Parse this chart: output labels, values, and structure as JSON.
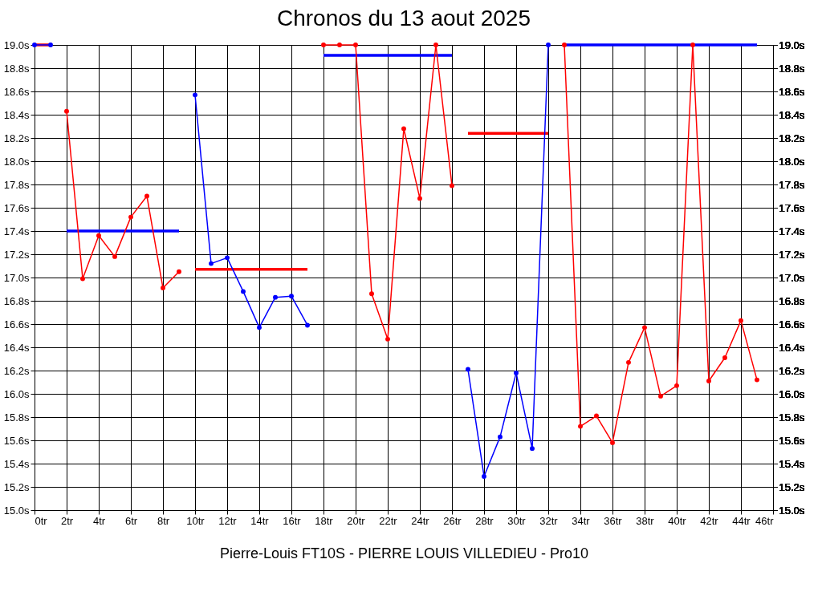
{
  "chart_data": {
    "type": "line",
    "title": "Chronos du 13 aout 2025",
    "xlabel": "Pierre-Louis FT10S - PIERRE LOUIS VILLEDIEU - Pro10",
    "xlim": [
      0,
      46
    ],
    "xticks": [
      {
        "value": 0,
        "label": "0tr"
      },
      {
        "value": 2,
        "label": "2tr"
      },
      {
        "value": 4,
        "label": "4tr"
      },
      {
        "value": 6,
        "label": "6tr"
      },
      {
        "value": 8,
        "label": "8tr"
      },
      {
        "value": 10,
        "label": "10tr"
      },
      {
        "value": 12,
        "label": "12tr"
      },
      {
        "value": 14,
        "label": "14tr"
      },
      {
        "value": 16,
        "label": "16tr"
      },
      {
        "value": 18,
        "label": "18tr"
      },
      {
        "value": 20,
        "label": "20tr"
      },
      {
        "value": 22,
        "label": "22tr"
      },
      {
        "value": 24,
        "label": "24tr"
      },
      {
        "value": 26,
        "label": "26tr"
      },
      {
        "value": 28,
        "label": "28tr"
      },
      {
        "value": 30,
        "label": "30tr"
      },
      {
        "value": 32,
        "label": "32tr"
      },
      {
        "value": 34,
        "label": "34tr"
      },
      {
        "value": 36,
        "label": "36tr"
      },
      {
        "value": 38,
        "label": "38tr"
      },
      {
        "value": 40,
        "label": "40tr"
      },
      {
        "value": 42,
        "label": "42tr"
      },
      {
        "value": 44,
        "label": "44tr"
      },
      {
        "value": 46,
        "label": "46tr"
      }
    ],
    "ylim": [
      15.0,
      19.0
    ],
    "yticks": [
      {
        "value": 15.0,
        "label": "15.0s"
      },
      {
        "value": 15.2,
        "label": "15.2s"
      },
      {
        "value": 15.4,
        "label": "15.4s"
      },
      {
        "value": 15.6,
        "label": "15.6s"
      },
      {
        "value": 15.8,
        "label": "15.8s"
      },
      {
        "value": 16.0,
        "label": "16.0s"
      },
      {
        "value": 16.2,
        "label": "16.2s"
      },
      {
        "value": 16.4,
        "label": "16.4s"
      },
      {
        "value": 16.6,
        "label": "16.6s"
      },
      {
        "value": 16.8,
        "label": "16.8s"
      },
      {
        "value": 17.0,
        "label": "17.0s"
      },
      {
        "value": 17.2,
        "label": "17.2s"
      },
      {
        "value": 17.4,
        "label": "17.4s"
      },
      {
        "value": 17.6,
        "label": "17.6s"
      },
      {
        "value": 17.8,
        "label": "17.8s"
      },
      {
        "value": 18.0,
        "label": "18.0s"
      },
      {
        "value": 18.2,
        "label": "18.2s"
      },
      {
        "value": 18.4,
        "label": "18.4s"
      },
      {
        "value": 18.6,
        "label": "18.6s"
      },
      {
        "value": 18.8,
        "label": "18.8s"
      },
      {
        "value": 19.0,
        "label": "19.0s"
      }
    ],
    "y2lim": [
      15.0,
      19.0
    ],
    "y2ticks": [
      {
        "value": 15.0,
        "label": "15.0s"
      },
      {
        "value": 15.2,
        "label": "15.2s"
      },
      {
        "value": 15.4,
        "label": "15.4s"
      },
      {
        "value": 15.6,
        "label": "15.6s"
      },
      {
        "value": 15.8,
        "label": "15.8s"
      },
      {
        "value": 16.0,
        "label": "16.0s"
      },
      {
        "value": 16.2,
        "label": "16.2s"
      },
      {
        "value": 16.4,
        "label": "16.4s"
      },
      {
        "value": 16.6,
        "label": "16.6s"
      },
      {
        "value": 16.8,
        "label": "16.8s"
      },
      {
        "value": 17.0,
        "label": "17.0s"
      },
      {
        "value": 17.2,
        "label": "17.2s"
      },
      {
        "value": 17.4,
        "label": "17.4s"
      },
      {
        "value": 17.6,
        "label": "17.6s"
      },
      {
        "value": 17.8,
        "label": "17.8s"
      },
      {
        "value": 18.0,
        "label": "18.0s"
      },
      {
        "value": 18.2,
        "label": "18.2s"
      },
      {
        "value": 18.4,
        "label": "18.4s"
      },
      {
        "value": 18.6,
        "label": "18.6s"
      },
      {
        "value": 18.8,
        "label": "18.8s"
      },
      {
        "value": 19.0,
        "label": "19.0s"
      }
    ],
    "grid": true,
    "legend": false,
    "marker": "circle",
    "line_style": "solid",
    "series": [
      {
        "color": "#ff0000",
        "marker": "none",
        "x": [
          0,
          1
        ],
        "values": [
          19.0,
          19.0
        ]
      },
      {
        "color": "#0000ff",
        "marker": "none",
        "x": [
          2,
          9
        ],
        "values": [
          17.4,
          17.4
        ]
      },
      {
        "color": "#ff0000",
        "marker": "none",
        "x": [
          10,
          17
        ],
        "values": [
          17.07,
          17.07
        ]
      },
      {
        "color": "#0000ff",
        "marker": "none",
        "x": [
          18,
          26
        ],
        "values": [
          18.91,
          18.91
        ]
      },
      {
        "color": "#ff0000",
        "marker": "none",
        "x": [
          27,
          32
        ],
        "values": [
          18.24,
          18.24
        ]
      },
      {
        "color": "#0000ff",
        "marker": "none",
        "x": [
          33,
          45
        ],
        "values": [
          19.0,
          19.0
        ]
      },
      {
        "color": "#0000ff",
        "x": [
          0,
          1
        ],
        "values": [
          19.0,
          19.0
        ]
      },
      {
        "color": "#ff0000",
        "x": [
          2,
          3,
          4,
          5,
          6,
          7,
          8,
          9
        ],
        "values": [
          18.43,
          16.99,
          17.36,
          17.18,
          17.52,
          17.7,
          16.91,
          17.05
        ]
      },
      {
        "color": "#0000ff",
        "x": [
          10,
          11,
          12,
          13,
          14,
          15,
          16,
          17
        ],
        "values": [
          18.57,
          17.12,
          17.17,
          16.88,
          16.57,
          16.83,
          16.84,
          16.59
        ]
      },
      {
        "color": "#ff0000",
        "x": [
          18,
          19,
          20,
          21,
          22,
          23,
          24,
          25,
          26
        ],
        "values": [
          19.0,
          19.0,
          19.0,
          16.86,
          16.47,
          18.28,
          17.68,
          19.0,
          17.79
        ]
      },
      {
        "color": "#0000ff",
        "x": [
          27,
          28,
          29,
          30,
          31,
          32
        ],
        "values": [
          16.21,
          15.29,
          15.63,
          16.18,
          15.53,
          19.0
        ]
      },
      {
        "color": "#ff0000",
        "x": [
          33,
          34,
          35,
          36,
          37,
          38,
          39,
          40,
          41,
          42,
          43,
          44,
          45
        ],
        "values": [
          19.0,
          15.72,
          15.81,
          15.58,
          16.27,
          16.57,
          15.98,
          16.07,
          19.0,
          16.11,
          16.31,
          16.63,
          16.12
        ]
      }
    ]
  }
}
